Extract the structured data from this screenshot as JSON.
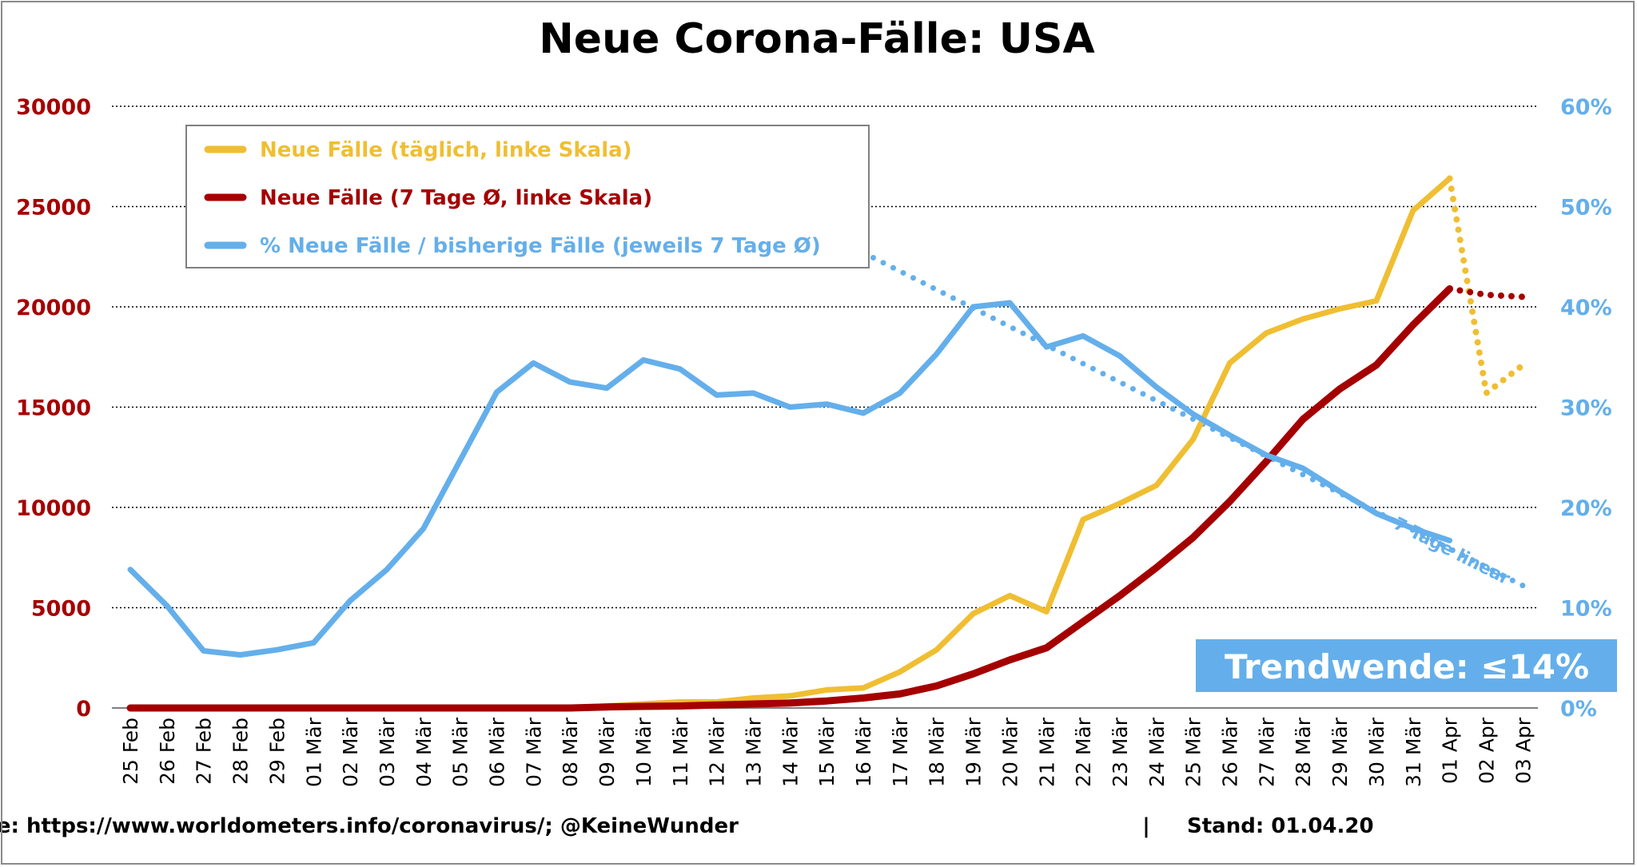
{
  "colors": {
    "daily": "#F0BE32",
    "avg7": "#A50000",
    "pct": "#64AFEB",
    "left_axis": "#A50000",
    "right_axis": "#64AFEB",
    "title": "#000000",
    "trend_box_bg": "#64AFEB",
    "trend_box_text": "#ffffff",
    "grid": "#000000",
    "legend_border": "#808080"
  },
  "chart_data": {
    "type": "line",
    "title": "Neue Corona-Fälle: USA",
    "categories": [
      "25 Feb",
      "26 Feb",
      "27 Feb",
      "28 Feb",
      "29 Feb",
      "01 Mär",
      "02 Mär",
      "03 Mär",
      "04 Mär",
      "05 Mär",
      "06 Mär",
      "07 Mär",
      "08 Mär",
      "09 Mär",
      "10 Mär",
      "11 Mär",
      "12 Mär",
      "13 Mär",
      "14 Mär",
      "15 Mär",
      "16 Mär",
      "17 Mär",
      "18 Mär",
      "19 Mär",
      "20 Mär",
      "21 Mär",
      "22 Mär",
      "23 Mär",
      "24 Mär",
      "25 Mär",
      "26 Mär",
      "27 Mär",
      "28 Mär",
      "29 Mär",
      "30 Mär",
      "31 Mär",
      "01 Apr",
      "02 Apr",
      "03 Apr"
    ],
    "left_axis": {
      "min": 0,
      "max": 30000,
      "ticks": [
        "0",
        "5000",
        "10000",
        "15000",
        "20000",
        "25000",
        "30000"
      ]
    },
    "right_axis": {
      "min": 0,
      "max": 60,
      "ticks": [
        "0%",
        "10%",
        "20%",
        "30%",
        "40%",
        "50%",
        "60%"
      ]
    },
    "grid": "dotted horizontal",
    "legend_position": "top-left",
    "series": [
      {
        "name": "Neue Fälle (täglich, linke Skala)",
        "axis": "left",
        "values": [
          0,
          0,
          0,
          0,
          0,
          0,
          0,
          0,
          0,
          0,
          0,
          0,
          0,
          100,
          200,
          300,
          300,
          500,
          600,
          900,
          1000,
          1800,
          2900,
          4700,
          5600,
          4800,
          9400,
          10200,
          11100,
          13400,
          17200,
          18700,
          19400,
          19900,
          20300,
          24800,
          26400,
          null,
          null
        ],
        "projection": {
          "categories": [
            "01 Apr",
            "02 Apr",
            "03 Apr"
          ],
          "values": [
            26400,
            15700,
            17100
          ]
        }
      },
      {
        "name": "Neue Fälle (7 Tage Ø, linke Skala)",
        "axis": "left",
        "values": [
          0,
          0,
          0,
          0,
          0,
          0,
          0,
          0,
          0,
          0,
          0,
          0,
          0,
          50,
          80,
          100,
          150,
          200,
          250,
          350,
          500,
          700,
          1100,
          1700,
          2400,
          3000,
          4300,
          5600,
          7000,
          8500,
          10300,
          12300,
          14400,
          15900,
          17100,
          19100,
          20900,
          null,
          null
        ],
        "projection": {
          "categories": [
            "01 Apr",
            "02 Apr",
            "03 Apr"
          ],
          "values": [
            20900,
            20600,
            20500
          ]
        }
      },
      {
        "name": "% Neue Fälle / bisherige Fälle (jeweils 7 Tage Ø)",
        "axis": "right",
        "values": [
          13.8,
          10.2,
          5.7,
          5.3,
          5.8,
          6.5,
          10.7,
          13.8,
          17.9,
          24.7,
          31.5,
          34.4,
          32.5,
          31.9,
          34.7,
          33.8,
          31.2,
          31.4,
          30.0,
          30.3,
          29.4,
          31.4,
          35.3,
          40.0,
          40.4,
          36.0,
          37.1,
          35.1,
          32.0,
          29.3,
          27.2,
          25.2,
          23.9,
          21.6,
          19.4,
          17.9,
          16.7,
          null,
          null
        ],
        "trend": {
          "label": "7 Tage linear",
          "categories": [
            "16 Mär",
            "03 Apr"
          ],
          "values": [
            45.4,
            12.2
          ]
        }
      }
    ],
    "annotation": "Trendwende: ≤14%"
  },
  "footer": {
    "source": "Quelle: https://www.worldometers.info/coronavirus/; @KeineWunder",
    "separator": "|",
    "stand": "Stand: 01.04.20"
  }
}
